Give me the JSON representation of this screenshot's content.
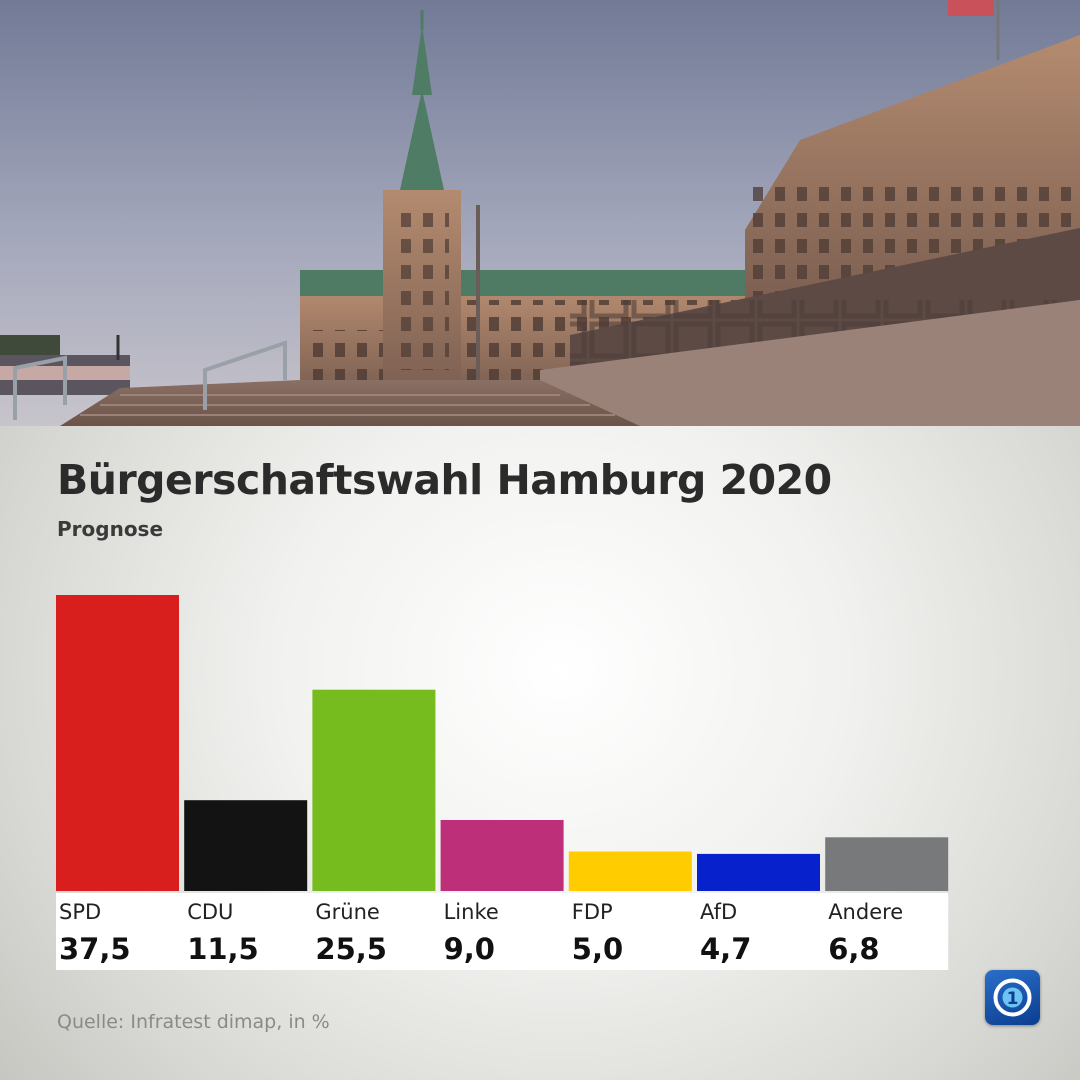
{
  "header": {
    "title": "Bürgerschaftswahl Hamburg 2020",
    "subtitle": "Prognose"
  },
  "source": "Quelle: Infratest dimap, in %",
  "logo": {
    "icon": "ard-1-logo-icon",
    "glyph": "1"
  },
  "chart_data": {
    "type": "bar",
    "title": "Bürgerschaftswahl Hamburg 2020",
    "subtitle": "Prognose",
    "unit": "%",
    "categories": [
      "SPD",
      "CDU",
      "Grüne",
      "Linke",
      "FDP",
      "AfD",
      "Andere"
    ],
    "values": [
      37.5,
      11.5,
      25.5,
      9.0,
      5.0,
      4.7,
      6.8
    ],
    "value_labels": [
      "37,5",
      "11,5",
      "25,5",
      "9,0",
      "5,0",
      "4,7",
      "6,8"
    ],
    "colors": [
      "#d81f1e",
      "#131313",
      "#76bc1e",
      "#bd2f79",
      "#ffcc00",
      "#0722cc",
      "#78797b"
    ],
    "ylim": [
      0,
      37.5
    ],
    "grid": false,
    "legend": "none"
  }
}
